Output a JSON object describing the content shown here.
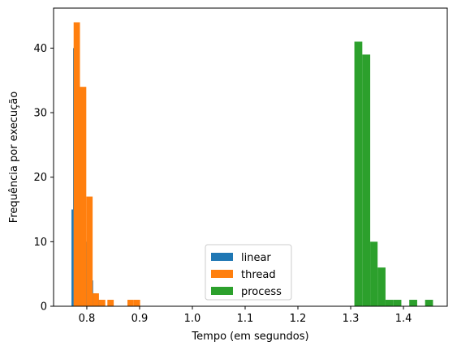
{
  "chart_data": {
    "type": "histogram",
    "xlabel": "Tempo (em segundos)",
    "ylabel": "Frequência por execução",
    "xlim": [
      0.737,
      1.483
    ],
    "ylim": [
      0,
      46.2
    ],
    "xticks": [
      {
        "value": 0.8,
        "label": "0.8"
      },
      {
        "value": 0.9,
        "label": "0.9"
      },
      {
        "value": 1.0,
        "label": "1.0"
      },
      {
        "value": 1.1,
        "label": "1.1"
      },
      {
        "value": 1.2,
        "label": "1.2"
      },
      {
        "value": 1.3,
        "label": "1.3"
      },
      {
        "value": 1.4,
        "label": "1.4"
      }
    ],
    "yticks": [
      {
        "value": 0,
        "label": "0"
      },
      {
        "value": 10,
        "label": "10"
      },
      {
        "value": 20,
        "label": "20"
      },
      {
        "value": 30,
        "label": "30"
      },
      {
        "value": 40,
        "label": "40"
      }
    ],
    "grid": false,
    "legend_position": "lower-center",
    "series": [
      {
        "name": "linear",
        "color": "#1f77b4",
        "bins": [
          {
            "x0": 0.771,
            "x1": 0.774,
            "count": 15
          },
          {
            "x0": 0.774,
            "x1": 0.777,
            "count": 40
          },
          {
            "x0": 0.777,
            "x1": 0.781,
            "count": 43
          },
          {
            "x0": 0.781,
            "x1": 0.784,
            "count": 34
          },
          {
            "x0": 0.784,
            "x1": 0.788,
            "count": 30
          },
          {
            "x0": 0.788,
            "x1": 0.791,
            "count": 24
          },
          {
            "x0": 0.791,
            "x1": 0.795,
            "count": 16
          },
          {
            "x0": 0.795,
            "x1": 0.798,
            "count": 12
          },
          {
            "x0": 0.798,
            "x1": 0.802,
            "count": 10
          },
          {
            "x0": 0.802,
            "x1": 0.805,
            "count": 8
          },
          {
            "x0": 0.805,
            "x1": 0.809,
            "count": 6
          },
          {
            "x0": 0.809,
            "x1": 0.812,
            "count": 4
          },
          {
            "x0": 0.812,
            "x1": 0.816,
            "count": 2
          },
          {
            "x0": 0.816,
            "x1": 0.819,
            "count": 2
          },
          {
            "x0": 0.822,
            "x1": 0.826,
            "count": 1
          },
          {
            "x0": 0.826,
            "x1": 0.829,
            "count": 1
          }
        ]
      },
      {
        "name": "thread",
        "color": "#ff7f0e",
        "bins": [
          {
            "x0": 0.775,
            "x1": 0.787,
            "count": 44
          },
          {
            "x0": 0.787,
            "x1": 0.799,
            "count": 34
          },
          {
            "x0": 0.799,
            "x1": 0.811,
            "count": 17
          },
          {
            "x0": 0.811,
            "x1": 0.823,
            "count": 2
          },
          {
            "x0": 0.823,
            "x1": 0.835,
            "count": 1
          },
          {
            "x0": 0.839,
            "x1": 0.851,
            "count": 1
          },
          {
            "x0": 0.877,
            "x1": 0.889,
            "count": 1
          },
          {
            "x0": 0.889,
            "x1": 0.901,
            "count": 1
          }
        ]
      },
      {
        "name": "process",
        "color": "#2ca02c",
        "bins": [
          {
            "x0": 1.307,
            "x1": 1.322,
            "count": 41
          },
          {
            "x0": 1.322,
            "x1": 1.337,
            "count": 39
          },
          {
            "x0": 1.337,
            "x1": 1.351,
            "count": 10
          },
          {
            "x0": 1.351,
            "x1": 1.366,
            "count": 6
          },
          {
            "x0": 1.366,
            "x1": 1.381,
            "count": 1
          },
          {
            "x0": 1.381,
            "x1": 1.396,
            "count": 1
          },
          {
            "x0": 1.411,
            "x1": 1.426,
            "count": 1
          },
          {
            "x0": 1.441,
            "x1": 1.456,
            "count": 1
          }
        ]
      }
    ]
  }
}
